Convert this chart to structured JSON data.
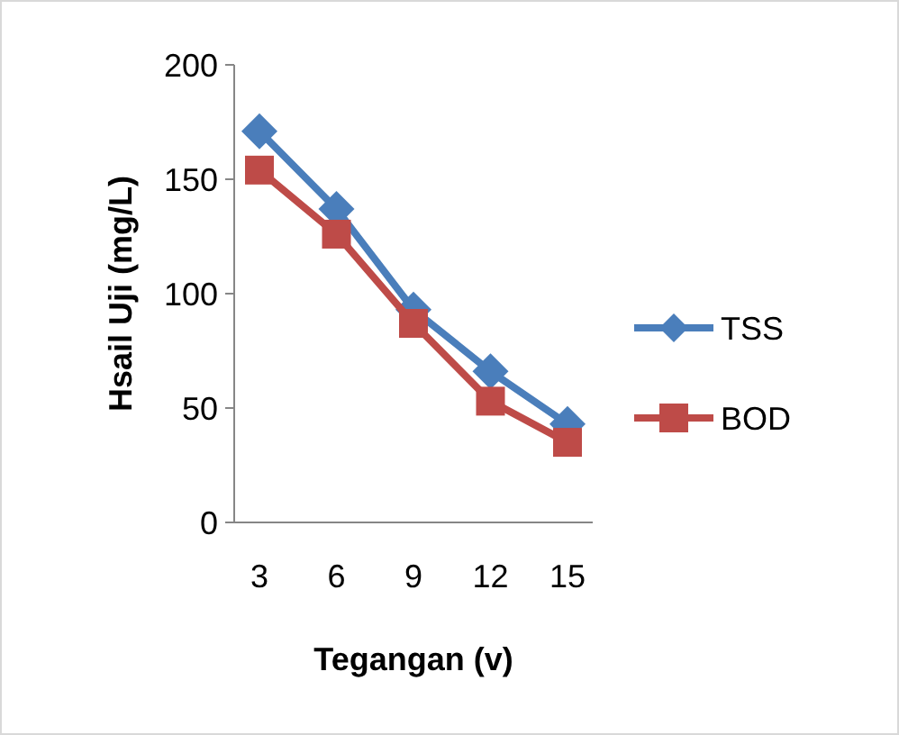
{
  "chart_data": {
    "type": "line",
    "xlabel": "Tegangan (v)",
    "ylabel": "Hsail Uji (mg/L)",
    "categories": [
      "3",
      "6",
      "9",
      "12",
      "15"
    ],
    "series": [
      {
        "name": "TSS",
        "color": "#4a7ebb",
        "values": [
          171,
          137,
          93,
          66,
          43
        ],
        "marker": "diamond"
      },
      {
        "name": "BOD",
        "color": "#be4b48",
        "values": [
          154,
          126,
          87,
          53,
          35
        ],
        "marker": "square"
      }
    ],
    "ylim": [
      0,
      200
    ],
    "yticks": [
      0,
      50,
      100,
      150,
      200
    ],
    "grid": false,
    "legend": "right"
  }
}
